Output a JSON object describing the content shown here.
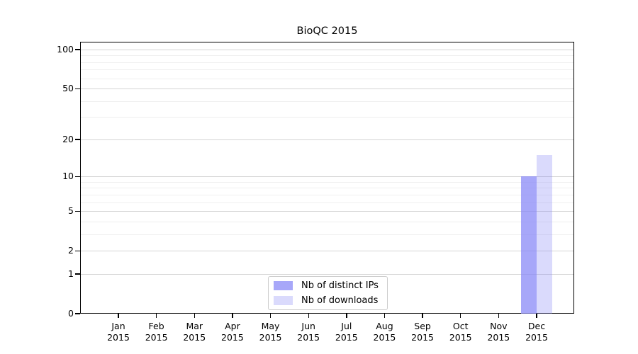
{
  "chart_data": {
    "type": "bar",
    "title": "BioQC 2015",
    "categories": [
      "Jan",
      "Feb",
      "Mar",
      "Apr",
      "May",
      "Jun",
      "Jul",
      "Aug",
      "Sep",
      "Oct",
      "Nov",
      "Dec"
    ],
    "category_sublabel": "2015",
    "series": [
      {
        "name": "Nb of distinct IPs",
        "color": "#8585f6",
        "opacity": 0.72,
        "values": [
          0,
          0,
          0,
          0,
          0,
          0,
          0,
          0,
          0,
          0,
          0,
          10
        ]
      },
      {
        "name": "Nb of downloads",
        "color": "#8585f6",
        "opacity": 0.3,
        "values": [
          0,
          0,
          0,
          0,
          0,
          0,
          0,
          0,
          0,
          0,
          0,
          15
        ]
      }
    ],
    "y_axis": {
      "scale": "log1p",
      "major_ticks": [
        0,
        1,
        2,
        5,
        10,
        20,
        50,
        100
      ],
      "minor_gridlines": [
        3,
        4,
        6,
        7,
        8,
        9,
        30,
        40,
        60,
        70,
        80,
        90
      ],
      "top_value": 115
    },
    "x_axis": {
      "tick_count": 12
    },
    "legend": {
      "position": "lower center"
    },
    "colors": {
      "frame": "#000000",
      "major_grid": "#d4d4d4",
      "minor_grid": "#efefef",
      "text": "#000000",
      "legend_border": "#cccccc",
      "background": "#ffffff"
    }
  }
}
